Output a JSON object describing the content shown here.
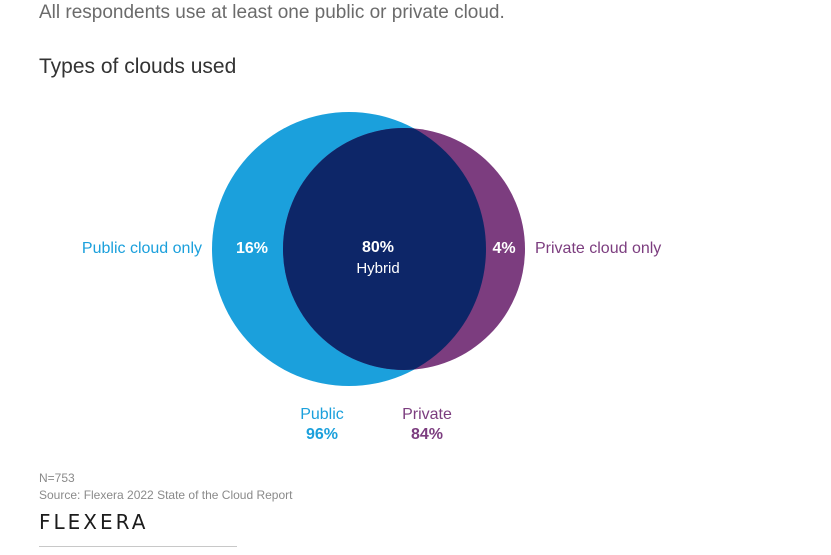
{
  "intro_text": "All respondents use at least one public or private cloud.",
  "chart_data": {
    "type": "venn",
    "title": "Types of clouds used",
    "sets": [
      {
        "key": "public",
        "name": "Public",
        "total": "96%",
        "exclusive_label": "Public cloud only",
        "exclusive_value": "16%",
        "color": "#1ba0dc"
      },
      {
        "key": "private",
        "name": "Private",
        "total": "84%",
        "exclusive_label": "Private cloud only",
        "exclusive_value": "4%",
        "color": "#7c3d7f"
      }
    ],
    "intersection": {
      "value": "80%",
      "label": "Hybrid",
      "color": "#0d2668"
    }
  },
  "footer": {
    "n": "N=753",
    "source": "Source: Flexera 2022 State of the Cloud Report"
  },
  "logo_text": "FLEXERA"
}
